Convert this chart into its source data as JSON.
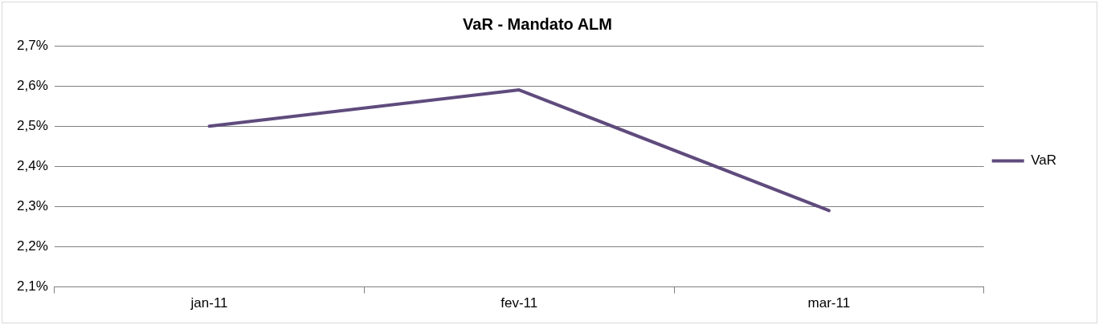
{
  "chart_data": {
    "type": "line",
    "title": "VaR - Mandato ALM",
    "categories": [
      "jan-11",
      "fev-11",
      "mar-11"
    ],
    "series": [
      {
        "name": "VaR",
        "color": "#5f4b7d",
        "values": [
          2.5,
          2.59,
          2.29
        ]
      }
    ],
    "ylim": [
      2.1,
      2.7
    ],
    "yticks": [
      {
        "value": 2.1,
        "label": "2,1%"
      },
      {
        "value": 2.2,
        "label": "2,2%"
      },
      {
        "value": 2.3,
        "label": "2,3%"
      },
      {
        "value": 2.4,
        "label": "2,4%"
      },
      {
        "value": 2.5,
        "label": "2,5%"
      },
      {
        "value": 2.6,
        "label": "2,6%"
      },
      {
        "value": 2.7,
        "label": "2,7%"
      }
    ],
    "grid": "y",
    "legend": "right",
    "marker": "none",
    "line_style": "solid"
  }
}
